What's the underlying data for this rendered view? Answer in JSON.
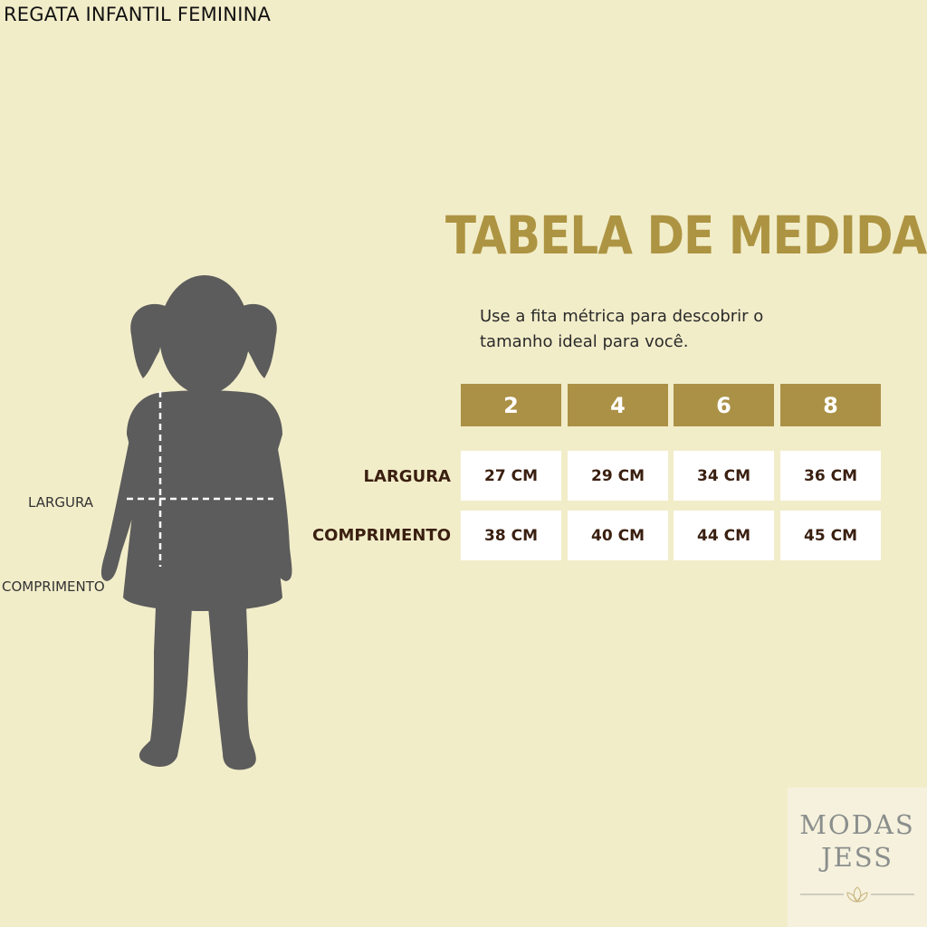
{
  "page_title": "REGATA INFANTIL FEMININA",
  "heading": "TABELA DE MEDIDAS",
  "subtitle": "Use a fita métrica para descobrir o tamanho ideal para você.",
  "figure_labels": {
    "width": "LARGURA",
    "length": "COMPRIMENTO"
  },
  "table": {
    "sizes": [
      "2",
      "4",
      "6",
      "8"
    ],
    "rows": [
      {
        "label": "LARGURA",
        "values": [
          "27 CM",
          "29 CM",
          "34 CM",
          "36 CM"
        ]
      },
      {
        "label": "COMPRIMENTO",
        "values": [
          "38 CM",
          "40 CM",
          "44 CM",
          "45 CM"
        ]
      }
    ]
  },
  "logo": {
    "line1": "MODAS",
    "line2": "JESS"
  },
  "colors": {
    "background": "#f2edc9",
    "accent": "#ab9146",
    "text_dark": "#3a1f10",
    "silhouette": "#5c5c5c"
  }
}
